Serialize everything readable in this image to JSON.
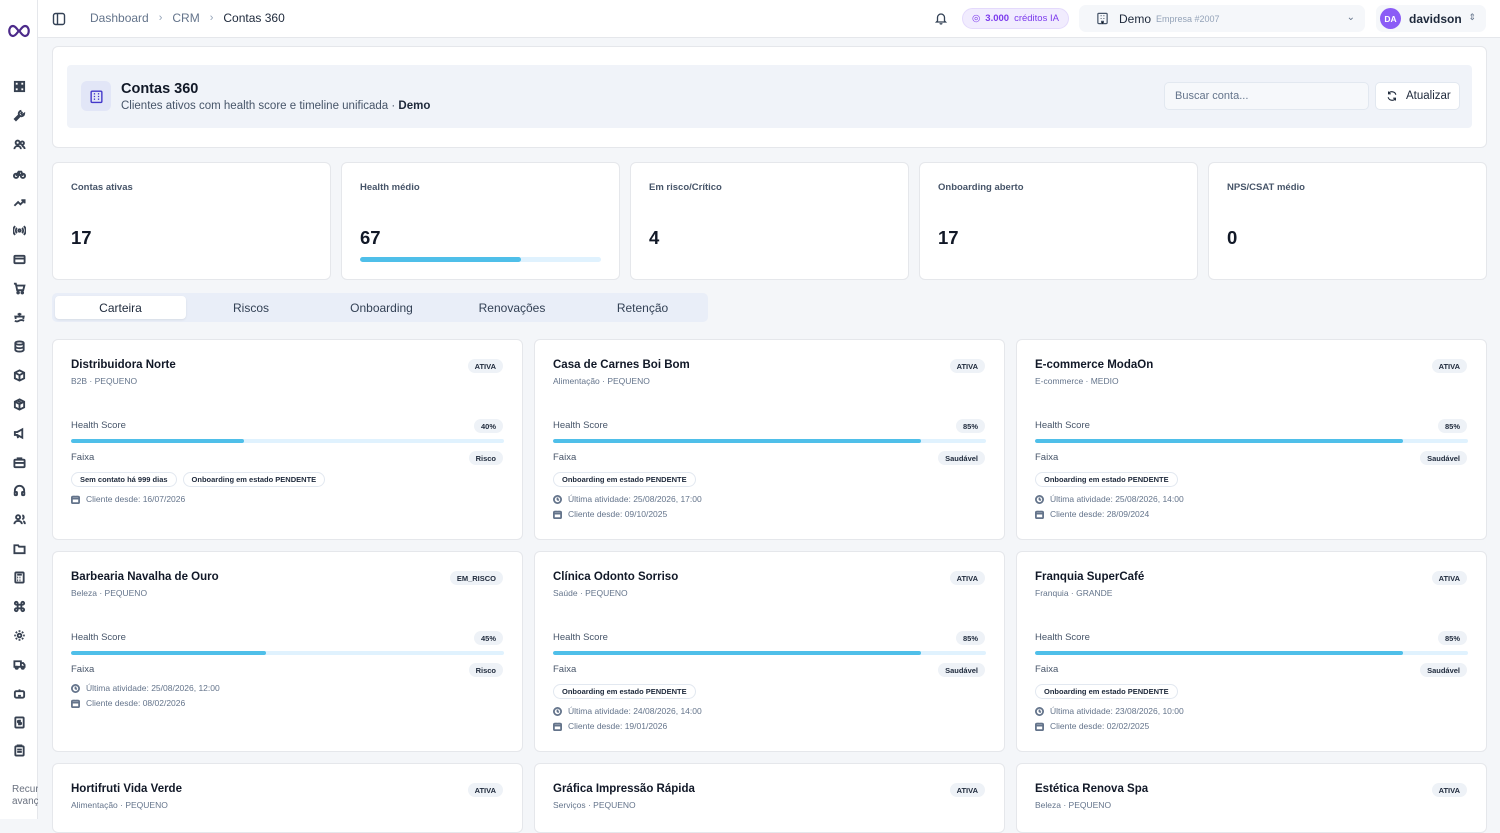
{
  "topbar": {
    "breadcrumb": [
      "Dashboard",
      "CRM",
      "Contas 360"
    ],
    "credits": {
      "amount": "3.000",
      "label": "créditos IA"
    },
    "company": {
      "name": "Demo",
      "code": "Empresa #2007"
    },
    "user": {
      "initials": "DA",
      "name": "davidson"
    }
  },
  "sidebar": {
    "icons": [
      "dashboard-icon",
      "wrench-icon",
      "users-icon",
      "bike-icon",
      "trending-icon",
      "radio-icon",
      "credit-card-icon",
      "cart-icon",
      "ship-icon",
      "database-icon",
      "box-icon",
      "package-icon",
      "megaphone-icon",
      "briefcase-icon",
      "headphones-icon",
      "contacts-icon",
      "folder-icon",
      "calculator-icon",
      "command-icon",
      "settings-icon",
      "truck-icon",
      "bot-icon",
      "file-dollar-icon",
      "clipboard-icon"
    ],
    "footer": [
      "Recur",
      "avanç"
    ]
  },
  "header": {
    "title": "Contas 360",
    "subtitle": "Clientes ativos com health score e timeline unificada · ",
    "subtitle_strong": "Demo",
    "search_placeholder": "Buscar conta...",
    "refresh_label": "Atualizar"
  },
  "kpis": [
    {
      "label": "Contas ativas",
      "value": "17"
    },
    {
      "label": "Health médio",
      "value": "67",
      "progress": 0.67
    },
    {
      "label": "Em risco/Crítico",
      "value": "4"
    },
    {
      "label": "Onboarding aberto",
      "value": "17"
    },
    {
      "label": "NPS/CSAT médio",
      "value": "0"
    }
  ],
  "tabs": [
    "Carteira",
    "Riscos",
    "Onboarding",
    "Renovações",
    "Retenção"
  ],
  "health_label": "Health Score",
  "faixa_label": "Faixa",
  "accounts": [
    {
      "name": "Distribuidora Norte",
      "meta": "B2B · PEQUENO",
      "status": "ATIVA",
      "health": "40%",
      "health_value": 0.4,
      "faixa": "Risco",
      "chips": [
        "Sem contato há 999 dias",
        "Onboarding em estado PENDENTE"
      ],
      "last_activity": "",
      "client_since": "Cliente desde: 16/07/2026"
    },
    {
      "name": "Casa de Carnes Boi Bom",
      "meta": "Alimentação · PEQUENO",
      "status": "ATIVA",
      "health": "85%",
      "health_value": 0.85,
      "faixa": "Saudável",
      "chips": [
        "Onboarding em estado PENDENTE"
      ],
      "last_activity": "Última atividade: 25/08/2026, 17:00",
      "client_since": "Cliente desde: 09/10/2025"
    },
    {
      "name": "E-commerce ModaOn",
      "meta": "E-commerce · MEDIO",
      "status": "ATIVA",
      "health": "85%",
      "health_value": 0.85,
      "faixa": "Saudável",
      "chips": [
        "Onboarding em estado PENDENTE"
      ],
      "last_activity": "Última atividade: 25/08/2026, 14:00",
      "client_since": "Cliente desde: 28/09/2024"
    },
    {
      "name": "Barbearia Navalha de Ouro",
      "meta": "Beleza · PEQUENO",
      "status": "EM_RISCO",
      "health": "45%",
      "health_value": 0.45,
      "faixa": "Risco",
      "chips": [],
      "last_activity": "Última atividade: 25/08/2026, 12:00",
      "client_since": "Cliente desde: 08/02/2026"
    },
    {
      "name": "Clínica Odonto Sorriso",
      "meta": "Saúde · PEQUENO",
      "status": "ATIVA",
      "health": "85%",
      "health_value": 0.85,
      "faixa": "Saudável",
      "chips": [
        "Onboarding em estado PENDENTE"
      ],
      "last_activity": "Última atividade: 24/08/2026, 14:00",
      "client_since": "Cliente desde: 19/01/2026"
    },
    {
      "name": "Franquia SuperCafé",
      "meta": "Franquia · GRANDE",
      "status": "ATIVA",
      "health": "85%",
      "health_value": 0.85,
      "faixa": "Saudável",
      "chips": [
        "Onboarding em estado PENDENTE"
      ],
      "last_activity": "Última atividade: 23/08/2026, 10:00",
      "client_since": "Cliente desde: 02/02/2025"
    },
    {
      "name": "Hortifruti Vida Verde",
      "meta": "Alimentação · PEQUENO",
      "status": "ATIVA"
    },
    {
      "name": "Gráfica Impressão Rápida",
      "meta": "Serviços · PEQUENO",
      "status": "ATIVA"
    },
    {
      "name": "Estética Renova Spa",
      "meta": "Beleza · PEQUENO",
      "status": "ATIVA"
    }
  ]
}
